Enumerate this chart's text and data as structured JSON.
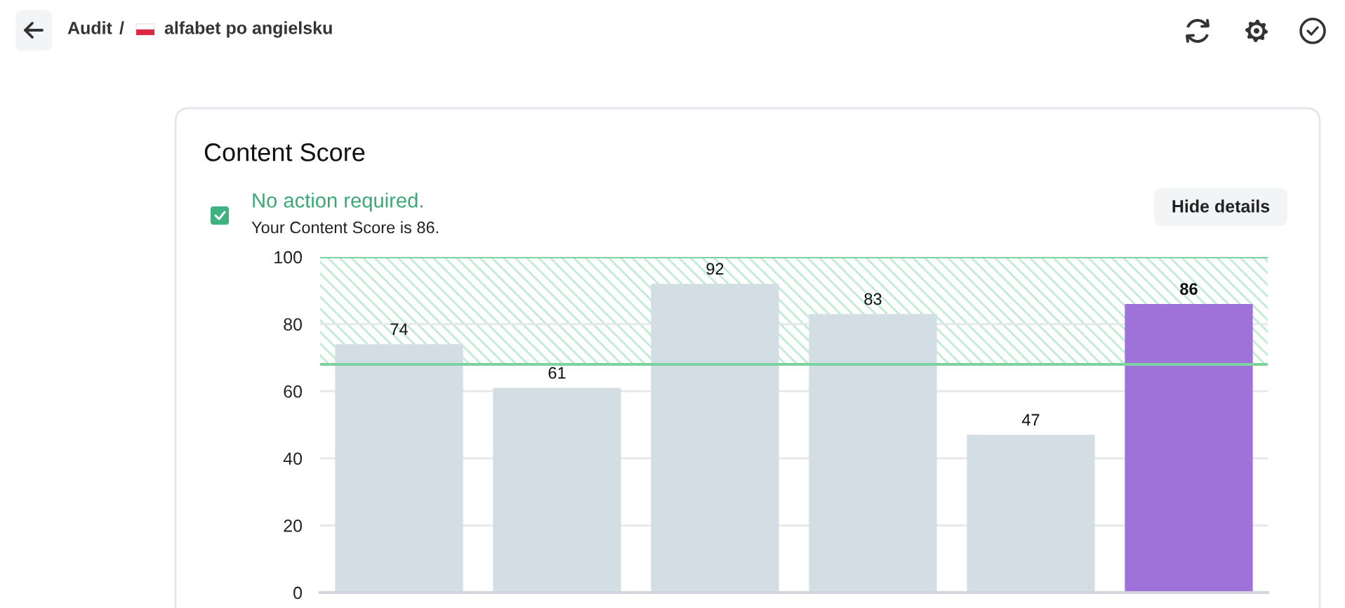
{
  "chart_data": {
    "type": "bar",
    "title": "Content Score",
    "categories": [
      null,
      null,
      null,
      null,
      null,
      null
    ],
    "values": [
      74,
      61,
      92,
      83,
      47,
      86
    ],
    "colors": [
      "#d3dde4",
      "#d3dde4",
      "#d3dde4",
      "#d3dde4",
      "#d3dde4",
      "#9e72d9"
    ],
    "ylim": [
      0,
      100
    ],
    "yticks": [
      0,
      20,
      40,
      60,
      80,
      100
    ],
    "grid": "y",
    "bands": [
      {
        "axis": "y",
        "from": 68,
        "to": 100,
        "color": "#c2ebd3"
      }
    ],
    "ref_lines": [
      {
        "axis": "y",
        "value": 68,
        "color": "#7dd3a0"
      },
      {
        "axis": "y",
        "value": 100,
        "color": "#7dd3a0"
      }
    ],
    "data_labels": true,
    "annotations": [
      "Audit",
      "/",
      "alfabet po angielsku",
      "No action required.",
      "Your Content Score is 86.",
      "Hide details"
    ]
  }
}
